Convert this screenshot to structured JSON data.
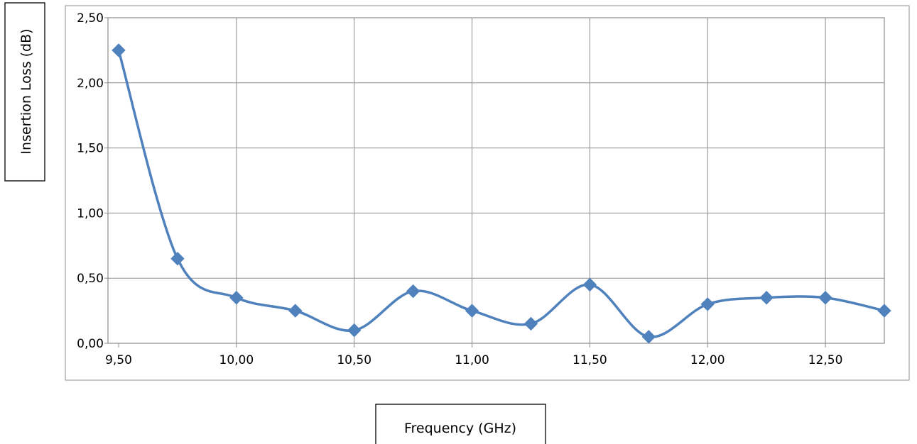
{
  "chart_data": {
    "type": "line",
    "title": "",
    "xlabel": "Frequency (GHz)",
    "ylabel": "Insertion Loss (dB)",
    "x": [
      9.5,
      9.75,
      10.0,
      10.25,
      10.5,
      10.75,
      11.0,
      11.25,
      11.5,
      11.75,
      12.0,
      12.25,
      12.5,
      12.75
    ],
    "series": [
      {
        "name": "",
        "values": [
          2.25,
          0.65,
          0.35,
          0.25,
          0.1,
          0.4,
          0.25,
          0.15,
          0.45,
          0.05,
          0.3,
          0.35,
          0.35,
          0.25
        ]
      }
    ],
    "xlim": [
      9.5,
      12.75
    ],
    "ylim": [
      0.0,
      2.5
    ],
    "x_ticks": [
      "9,50",
      "10,00",
      "10,50",
      "11,00",
      "11,50",
      "12,00",
      "12,50"
    ],
    "y_ticks": [
      "0,00",
      "0,50",
      "1,00",
      "1,50",
      "2,00",
      "2,50"
    ],
    "grid": true,
    "legend": "none",
    "line_smoothed": true,
    "marker": "diamond",
    "colors": {
      "series": "#4f81bd",
      "grid": "#8c8c8c",
      "text": "#000000"
    }
  }
}
